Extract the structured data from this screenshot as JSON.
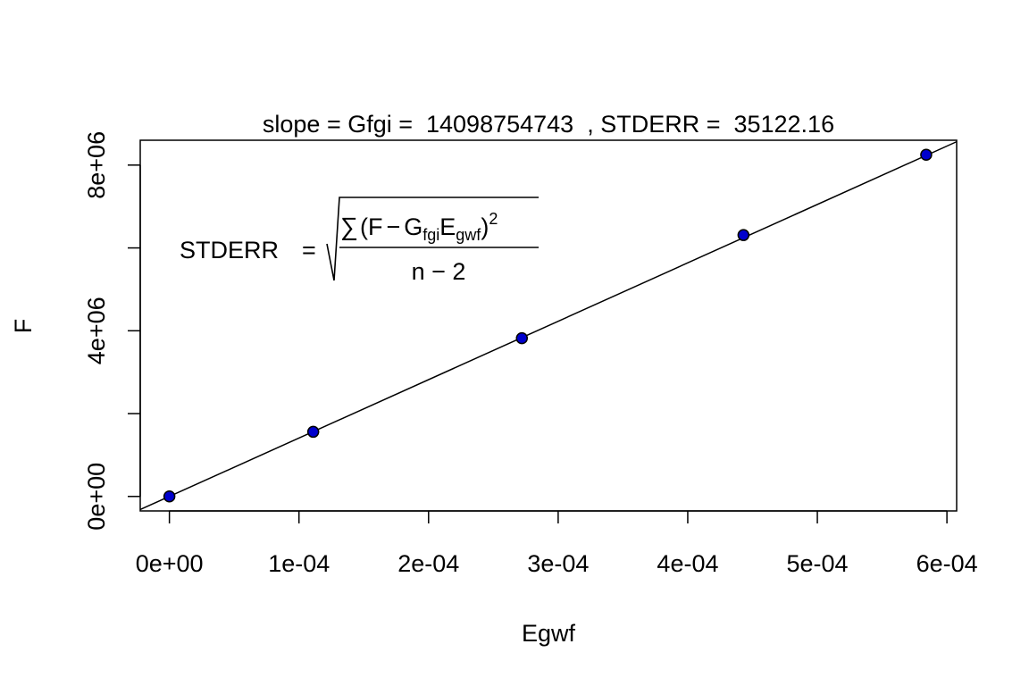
{
  "chart_data": {
    "type": "scatter",
    "title": "slope = Gfgi =  14098754743  , STDERR =  35122.16",
    "xlabel": "Egwf",
    "ylabel": "F",
    "xlim": [
      -2.25e-05,
      0.0006075
    ],
    "ylim": [
      -350000,
      8600000
    ],
    "x_ticks": [
      0,
      0.0001,
      0.0002,
      0.0003,
      0.0004,
      0.0005,
      0.0006
    ],
    "x_tick_labels": [
      "0e+00",
      "1e-04",
      "2e-04",
      "3e-04",
      "4e-04",
      "5e-04",
      "6e-04"
    ],
    "y_ticks": [
      0,
      2000000,
      4000000,
      6000000,
      8000000
    ],
    "y_tick_labels": [
      "0e+00",
      "",
      "4e+06",
      "",
      "8e+06"
    ],
    "grid": false,
    "series": [
      {
        "x": [
          0,
          0.000111,
          0.000272,
          0.000443,
          0.000584
        ],
        "y": [
          0,
          1560000,
          3820000,
          6310000,
          8250000
        ],
        "marker": "filled-circle",
        "color": "#0000CD"
      }
    ],
    "fit_line": {
      "slope": 14098754743,
      "intercept": 0,
      "color": "#000000"
    },
    "annotation": {
      "lhs": "STDERR",
      "eq": "=",
      "sum": "∑",
      "paren_open": "(",
      "F": "F",
      "minus": "−",
      "G": "G",
      "G_sub": "fgi",
      "E": "E",
      "E_sub": "gwf",
      "paren_close": ")",
      "power": "2",
      "denominator": "n − 2"
    }
  }
}
